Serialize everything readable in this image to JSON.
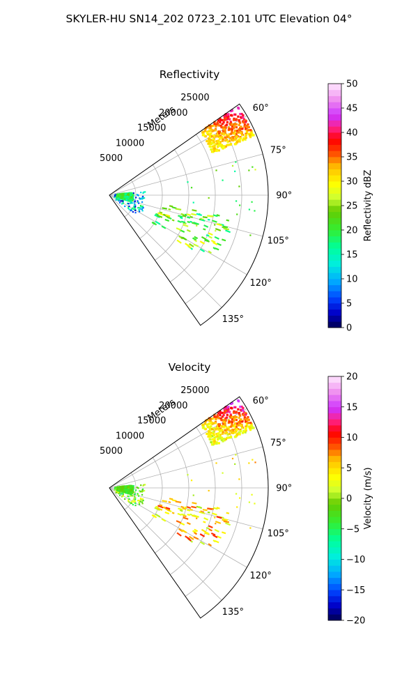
{
  "figure": {
    "title": "SKYLER-HU  SN14_202  0723_2.101 UTC Elevation 04°"
  },
  "chart_data": [
    {
      "type": "polar-sector",
      "title": "Reflectivity",
      "radial_label": "Meters",
      "theta_range_deg": [
        55,
        145
      ],
      "theta_ticks": [
        "60°",
        "75°",
        "90°",
        "105°",
        "120°",
        "135°"
      ],
      "theta_tick_values": [
        60,
        75,
        90,
        105,
        120,
        135
      ],
      "r_max": 30000,
      "r_ticks": [
        "5000",
        "10000",
        "15000",
        "20000",
        "25000"
      ],
      "r_tick_values": [
        5000,
        10000,
        15000,
        20000,
        25000
      ],
      "grid": true,
      "colorbar": {
        "label": "Reflectivity dBZ",
        "min": 0,
        "max": 50,
        "ticks": [
          "0",
          "5",
          "10",
          "15",
          "20",
          "25",
          "30",
          "35",
          "40",
          "45",
          "50"
        ],
        "tick_values": [
          0,
          5,
          10,
          15,
          20,
          25,
          30,
          35,
          40,
          45,
          50
        ]
      },
      "echoes": [
        {
          "theta_range": [
            55,
            68
          ],
          "r_range": [
            21000,
            29500
          ],
          "value_range": [
            20,
            42
          ],
          "coverage": "dense",
          "note": "storm core near 60°"
        },
        {
          "theta_range": [
            82,
            126
          ],
          "r_range": [
            1000,
            7000
          ],
          "value_range": [
            2,
            20
          ],
          "coverage": "scattered"
        },
        {
          "theta_range": [
            84,
            106
          ],
          "r_range": [
            1500,
            4500
          ],
          "value_range": [
            14,
            24
          ],
          "coverage": "dense"
        },
        {
          "theta_range": [
            100,
            124
          ],
          "r_range": [
            9000,
            23000
          ],
          "value_range": [
            15,
            30
          ],
          "coverage": "streaks"
        },
        {
          "theta_range": [
            75,
            110
          ],
          "r_range": [
            15000,
            28000
          ],
          "value_range": [
            15,
            28
          ],
          "coverage": "sparse"
        }
      ]
    },
    {
      "type": "polar-sector",
      "title": "Velocity",
      "radial_label": "Meters",
      "theta_range_deg": [
        55,
        145
      ],
      "theta_ticks": [
        "60°",
        "75°",
        "90°",
        "105°",
        "120°",
        "135°"
      ],
      "theta_tick_values": [
        60,
        75,
        90,
        105,
        120,
        135
      ],
      "r_max": 30000,
      "r_ticks": [
        "5000",
        "10000",
        "15000",
        "20000",
        "25000"
      ],
      "r_tick_values": [
        5000,
        10000,
        15000,
        20000,
        25000
      ],
      "grid": true,
      "colorbar": {
        "label": "Velocity (m/s)",
        "min": -20,
        "max": 20,
        "ticks": [
          "−20",
          "−15",
          "−10",
          "−5",
          "0",
          "5",
          "10",
          "15",
          "20"
        ],
        "tick_values": [
          -20,
          -15,
          -10,
          -5,
          0,
          5,
          10,
          15,
          20
        ]
      },
      "echoes": [
        {
          "theta_range": [
            55,
            68
          ],
          "r_range": [
            21000,
            29500
          ],
          "value_range": [
            -8,
            15
          ],
          "coverage": "dense",
          "note": "storm core near 60°"
        },
        {
          "theta_range": [
            82,
            126
          ],
          "r_range": [
            1000,
            7000
          ],
          "value_range": [
            -6,
            4
          ],
          "coverage": "scattered"
        },
        {
          "theta_range": [
            84,
            106
          ],
          "r_range": [
            1500,
            4500
          ],
          "value_range": [
            -5,
            0
          ],
          "coverage": "dense"
        },
        {
          "theta_range": [
            100,
            124
          ],
          "r_range": [
            9000,
            23000
          ],
          "value_range": [
            0,
            10
          ],
          "coverage": "streaks"
        },
        {
          "theta_range": [
            75,
            110
          ],
          "r_range": [
            15000,
            28000
          ],
          "value_range": [
            0,
            8
          ],
          "coverage": "sparse"
        }
      ]
    }
  ]
}
